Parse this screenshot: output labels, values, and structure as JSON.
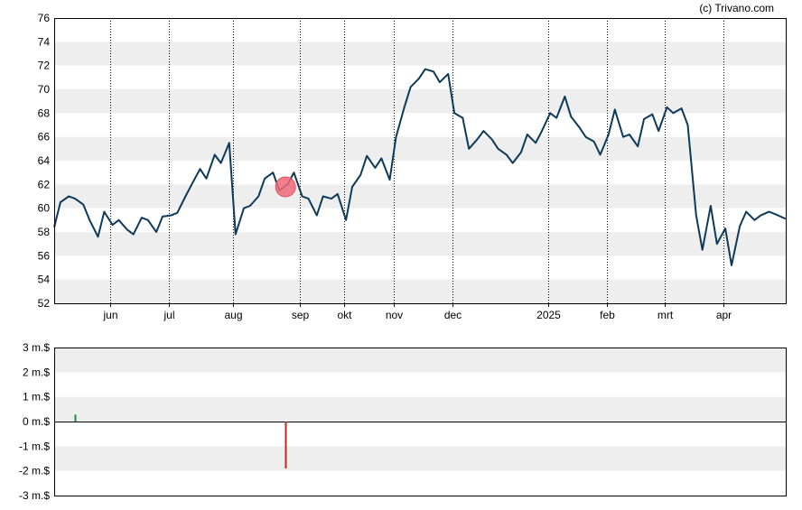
{
  "credit": "(c) Trivano.com",
  "colors": {
    "band": "#eeeeee",
    "price_line": "#0e3a5a",
    "marker": "#f06a78",
    "buy_bar": "#1a8a3a",
    "sell_bar": "#cc2020",
    "axis": "#000000",
    "grid": "#000000"
  },
  "chart_data": [
    {
      "type": "line",
      "title": "",
      "xlabel": "",
      "ylabel": "",
      "ylim": [
        52,
        76
      ],
      "yticks": [
        52,
        54,
        56,
        58,
        60,
        62,
        64,
        66,
        68,
        70,
        72,
        74,
        76
      ],
      "xlim": [
        "2024-05-07",
        "2025-04-23"
      ],
      "xticks": [
        {
          "label": "jun",
          "date": "2024-06-03"
        },
        {
          "label": "jul",
          "date": "2024-07-01"
        },
        {
          "label": "aug",
          "date": "2024-08-01"
        },
        {
          "label": "sep",
          "date": "2024-09-02"
        },
        {
          "label": "okt",
          "date": "2024-09-23"
        },
        {
          "label": "nov",
          "date": "2024-10-17"
        },
        {
          "label": "dec",
          "date": "2024-11-14"
        },
        {
          "label": "2025",
          "date": "2024-12-30"
        },
        {
          "label": "feb",
          "date": "2025-01-27"
        },
        {
          "label": "mrt",
          "date": "2025-02-24"
        },
        {
          "label": "apr",
          "date": "2025-03-24"
        }
      ],
      "grid": "vertical dotted at month ticks, alternating horizontal bands",
      "series": [
        {
          "x": [
            "2024-05-07",
            "2024-05-10",
            "2024-05-14",
            "2024-05-17",
            "2024-05-21",
            "2024-05-24",
            "2024-05-28",
            "2024-05-31",
            "2024-06-04",
            "2024-06-07",
            "2024-06-11",
            "2024-06-14",
            "2024-06-18",
            "2024-06-21",
            "2024-06-25",
            "2024-06-28",
            "2024-07-02",
            "2024-07-05",
            "2024-07-09",
            "2024-07-12",
            "2024-07-16",
            "2024-07-19",
            "2024-07-23",
            "2024-07-26",
            "2024-07-30",
            "2024-08-02",
            "2024-08-06",
            "2024-08-09",
            "2024-08-13",
            "2024-08-16",
            "2024-08-20",
            "2024-08-23",
            "2024-08-27",
            "2024-08-30",
            "2024-09-03",
            "2024-09-06",
            "2024-09-10",
            "2024-09-13",
            "2024-09-17",
            "2024-09-20",
            "2024-09-24",
            "2024-09-27",
            "2024-10-01",
            "2024-10-04",
            "2024-10-08",
            "2024-10-11",
            "2024-10-15",
            "2024-10-18",
            "2024-10-22",
            "2024-10-25",
            "2024-10-29",
            "2024-11-01",
            "2024-11-05",
            "2024-11-08",
            "2024-11-12",
            "2024-11-15",
            "2024-11-19",
            "2024-11-22",
            "2024-11-26",
            "2024-11-29",
            "2024-12-03",
            "2024-12-06",
            "2024-12-10",
            "2024-12-13",
            "2024-12-17",
            "2024-12-20",
            "2024-12-24",
            "2024-12-27",
            "2024-12-31",
            "2025-01-03",
            "2025-01-07",
            "2025-01-10",
            "2025-01-14",
            "2025-01-17",
            "2025-01-21",
            "2025-01-24",
            "2025-01-28",
            "2025-01-31",
            "2025-02-04",
            "2025-02-07",
            "2025-02-11",
            "2025-02-14",
            "2025-02-18",
            "2025-02-21",
            "2025-02-25",
            "2025-02-28",
            "2025-03-04",
            "2025-03-07",
            "2025-03-11",
            "2025-03-14",
            "2025-03-18",
            "2025-03-21",
            "2025-03-25",
            "2025-03-28",
            "2025-04-01",
            "2025-04-04",
            "2025-04-08",
            "2025-04-11",
            "2025-04-15",
            "2025-04-18",
            "2025-04-23"
          ],
          "values": [
            58.4,
            60.5,
            61.0,
            60.8,
            60.3,
            59.0,
            57.6,
            59.7,
            58.6,
            59.0,
            58.2,
            57.8,
            59.2,
            59.0,
            58.0,
            59.3,
            59.4,
            59.6,
            61.0,
            62.0,
            63.3,
            62.5,
            64.5,
            63.8,
            65.5,
            57.8,
            60.0,
            60.2,
            61.0,
            62.5,
            63.0,
            61.5,
            62.0,
            63.0,
            61.0,
            60.8,
            59.4,
            61.0,
            60.8,
            61.2,
            59.0,
            61.8,
            62.8,
            64.4,
            63.4,
            64.2,
            62.4,
            66.0,
            68.5,
            70.2,
            70.9,
            71.7,
            71.5,
            70.6,
            71.3,
            68.0,
            67.6,
            65.0,
            65.8,
            66.5,
            65.8,
            65.0,
            64.5,
            63.8,
            64.7,
            66.2,
            65.5,
            66.5,
            68.0,
            67.6,
            69.4,
            67.7,
            66.8,
            66.0,
            65.6,
            64.5,
            66.2,
            68.3,
            66.0,
            66.2,
            65.2,
            67.5,
            67.9,
            66.5,
            68.5,
            68.0,
            68.4,
            67.0,
            59.4,
            56.5,
            60.2,
            57.0,
            58.3,
            55.2,
            58.5,
            59.7,
            59.0,
            59.4,
            59.7,
            59.5,
            59.1
          ],
          "samples_note": ""
        }
      ],
      "markers": [
        {
          "date": "2024-08-26",
          "value": 61.8,
          "kind": "sell"
        }
      ]
    },
    {
      "type": "bar",
      "title": "",
      "xlabel": "",
      "ylabel": "",
      "ylim": [
        -3,
        3
      ],
      "yticks": [
        {
          "value": 3,
          "label": "3 m.$"
        },
        {
          "value": 2,
          "label": "2 m.$"
        },
        {
          "value": 1,
          "label": "1 m.$"
        },
        {
          "value": 0,
          "label": "0 m.$"
        },
        {
          "value": -1,
          "label": "-1 m.$"
        },
        {
          "value": -2,
          "label": "-2 m.$"
        },
        {
          "value": -3,
          "label": "-3 m.$"
        }
      ],
      "bars": [
        {
          "date": "2024-05-17",
          "value": 0.28,
          "kind": "buy"
        },
        {
          "date": "2024-08-26",
          "value": -1.9,
          "kind": "sell"
        }
      ]
    }
  ]
}
